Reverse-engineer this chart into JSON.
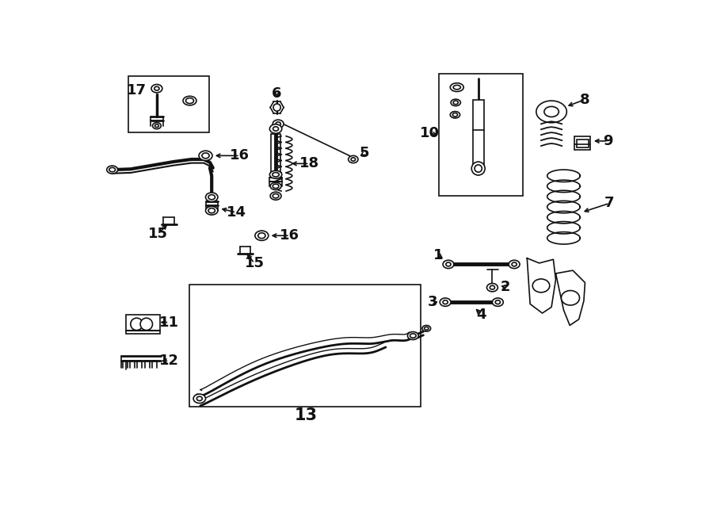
{
  "bg": "#ffffff",
  "lc": "#111111",
  "lw": 1.2,
  "fw": 9.0,
  "fh": 6.61,
  "dpi": 100,
  "fs": 13
}
